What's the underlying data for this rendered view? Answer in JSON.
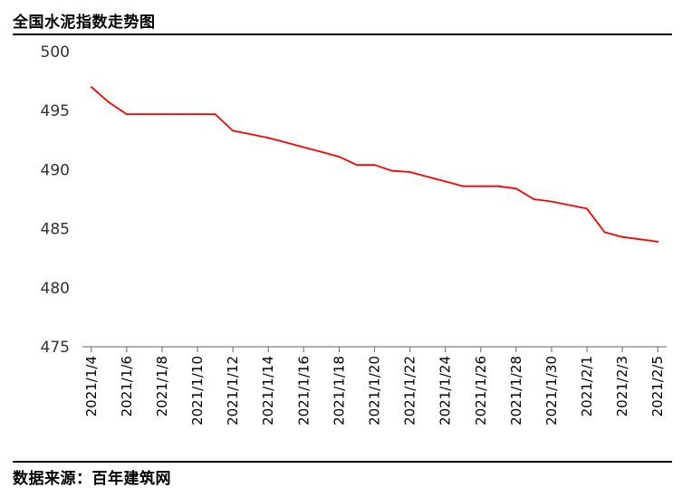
{
  "header": {
    "title": "全国水泥指数走势图"
  },
  "footer": {
    "source": "数据来源：百年建筑网"
  },
  "chart_data": {
    "type": "line",
    "title": "全国水泥指数走势图",
    "xlabel": "",
    "ylabel": "",
    "ylim": [
      475,
      500
    ],
    "yticks": [
      475,
      480,
      485,
      490,
      495,
      500
    ],
    "grid": false,
    "legend": "none",
    "line_color": "#ff0000",
    "x_tick_labels": [
      "2021/1/4",
      "2021/1/6",
      "2021/1/8",
      "2021/1/10",
      "2021/1/12",
      "2021/1/14",
      "2021/1/16",
      "2021/1/18",
      "2021/1/20",
      "2021/1/22",
      "2021/1/24",
      "2021/1/26",
      "2021/1/28",
      "2021/1/30",
      "2021/2/1",
      "2021/2/3",
      "2021/2/5"
    ],
    "series": [
      {
        "x": [
          "2021/1/4",
          "2021/1/5",
          "2021/1/6",
          "2021/1/7",
          "2021/1/8",
          "2021/1/9",
          "2021/1/10",
          "2021/1/11",
          "2021/1/12",
          "2021/1/13",
          "2021/1/14",
          "2021/1/15",
          "2021/1/16",
          "2021/1/17",
          "2021/1/18",
          "2021/1/19",
          "2021/1/20",
          "2021/1/21",
          "2021/1/22",
          "2021/1/23",
          "2021/1/24",
          "2021/1/25",
          "2021/1/26",
          "2021/1/27",
          "2021/1/28",
          "2021/1/29",
          "2021/1/30",
          "2021/1/31",
          "2021/2/1",
          "2021/2/2",
          "2021/2/3",
          "2021/2/4",
          "2021/2/5"
        ],
        "values": [
          497.0,
          495.7,
          494.7,
          494.7,
          494.7,
          494.7,
          494.7,
          494.7,
          493.3,
          493.0,
          492.7,
          492.3,
          491.9,
          491.5,
          491.1,
          490.4,
          490.4,
          489.9,
          489.8,
          489.4,
          489.0,
          488.6,
          488.6,
          488.6,
          488.4,
          487.5,
          487.3,
          487.0,
          486.7,
          484.7,
          484.3,
          484.1,
          483.9
        ]
      }
    ]
  }
}
